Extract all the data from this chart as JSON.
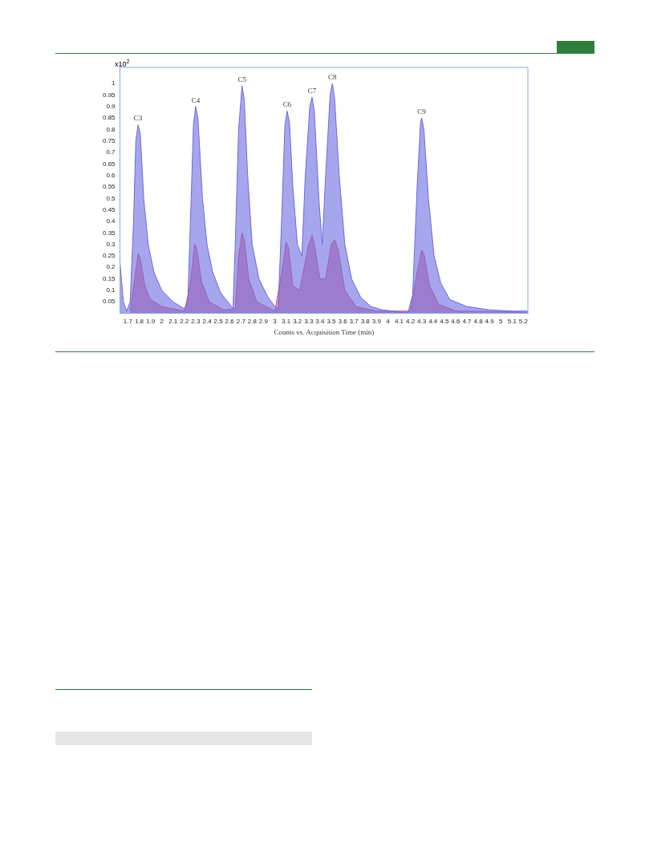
{
  "chart_data": {
    "type": "area",
    "xlabel": "Counts vs. Acquisition Time (min)",
    "ylabel": "x10$^{2}$",
    "xlim": [
      1.63,
      5.24
    ],
    "xticks": [
      1.7,
      1.8,
      1.9,
      2,
      2.1,
      2.2,
      2.3,
      2.4,
      2.5,
      2.6,
      2.7,
      2.8,
      2.9,
      3,
      3.1,
      3.2,
      3.3,
      3.4,
      3.5,
      3.6,
      3.7,
      3.8,
      3.9,
      4,
      4.1,
      4.2,
      4.3,
      4.4,
      4.5,
      4.6,
      4.7,
      4.8,
      4.9,
      5,
      5.1,
      5.2
    ],
    "ylim": [
      0,
      1.07
    ],
    "yticks": [
      0.05,
      0.1,
      0.15,
      0.2,
      0.25,
      0.3,
      0.35,
      0.4,
      0.45,
      0.5,
      0.55,
      0.6,
      0.65,
      0.7,
      0.75,
      0.8,
      0.85,
      0.9,
      0.95,
      1
    ],
    "grid": false,
    "legend": false,
    "marker": "none",
    "line_style": "solid",
    "series": [
      {
        "color": "#6a6ae0",
        "x": [
          1.63,
          1.66,
          1.69,
          1.72,
          1.75,
          1.77,
          1.79,
          1.81,
          1.84,
          1.88,
          1.93,
          2.0,
          2.1,
          2.2,
          2.23,
          2.26,
          2.28,
          2.3,
          2.32,
          2.36,
          2.4,
          2.45,
          2.52,
          2.6,
          2.63,
          2.65,
          2.68,
          2.71,
          2.73,
          2.76,
          2.8,
          2.86,
          2.94,
          3.0,
          3.03,
          3.06,
          3.09,
          3.11,
          3.13,
          3.16,
          3.2,
          3.24,
          3.27,
          3.31,
          3.33,
          3.35,
          3.39,
          3.42,
          3.45,
          3.49,
          3.51,
          3.53,
          3.57,
          3.62,
          3.68,
          3.76,
          3.85,
          3.95,
          4.05,
          4.1,
          4.18,
          4.22,
          4.26,
          4.29,
          4.3,
          4.32,
          4.36,
          4.41,
          4.47,
          4.55,
          4.7,
          4.9,
          5.1,
          5.24
        ],
        "values": [
          0.22,
          0.05,
          0.01,
          0.05,
          0.4,
          0.75,
          0.82,
          0.78,
          0.5,
          0.3,
          0.18,
          0.1,
          0.05,
          0.02,
          0.05,
          0.5,
          0.82,
          0.9,
          0.85,
          0.5,
          0.3,
          0.18,
          0.09,
          0.04,
          0.02,
          0.3,
          0.8,
          0.99,
          0.93,
          0.6,
          0.3,
          0.15,
          0.07,
          0.03,
          0.02,
          0.4,
          0.82,
          0.88,
          0.83,
          0.55,
          0.3,
          0.25,
          0.6,
          0.9,
          0.94,
          0.88,
          0.5,
          0.3,
          0.6,
          0.95,
          1.0,
          0.93,
          0.6,
          0.3,
          0.15,
          0.07,
          0.03,
          0.015,
          0.01,
          0.005,
          0.005,
          0.08,
          0.55,
          0.83,
          0.85,
          0.8,
          0.5,
          0.25,
          0.13,
          0.06,
          0.03,
          0.015,
          0.01,
          0.01
        ]
      },
      {
        "color": "#e0507f",
        "x": [
          1.72,
          1.76,
          1.79,
          1.81,
          1.85,
          1.9,
          2.0,
          2.2,
          2.25,
          2.29,
          2.31,
          2.35,
          2.42,
          2.55,
          2.65,
          2.68,
          2.71,
          2.73,
          2.77,
          2.84,
          3.0,
          3.07,
          3.1,
          3.12,
          3.16,
          3.22,
          3.3,
          3.33,
          3.35,
          3.4,
          3.45,
          3.5,
          3.53,
          3.56,
          3.62,
          3.72,
          3.9,
          4.2,
          4.26,
          4.3,
          4.32,
          4.37,
          4.45,
          4.6,
          5.24
        ],
        "values": [
          0.01,
          0.15,
          0.26,
          0.24,
          0.12,
          0.06,
          0.03,
          0.01,
          0.12,
          0.3,
          0.28,
          0.14,
          0.05,
          0.015,
          0.02,
          0.25,
          0.35,
          0.32,
          0.15,
          0.05,
          0.01,
          0.2,
          0.31,
          0.29,
          0.12,
          0.1,
          0.3,
          0.34,
          0.3,
          0.15,
          0.15,
          0.3,
          0.32,
          0.28,
          0.1,
          0.03,
          0.01,
          0.01,
          0.18,
          0.275,
          0.26,
          0.12,
          0.04,
          0.01,
          0.005
        ]
      }
    ],
    "annotations": [
      {
        "text": "C3",
        "x": 1.79,
        "y": 0.82
      },
      {
        "text": "C4",
        "x": 2.3,
        "y": 0.9
      },
      {
        "text": "C5",
        "x": 2.71,
        "y": 0.99
      },
      {
        "text": "C6",
        "x": 3.11,
        "y": 0.88
      },
      {
        "text": "C7",
        "x": 3.33,
        "y": 0.94
      },
      {
        "text": "C8",
        "x": 3.51,
        "y": 1.0
      },
      {
        "text": "C9",
        "x": 4.3,
        "y": 0.85
      }
    ]
  }
}
